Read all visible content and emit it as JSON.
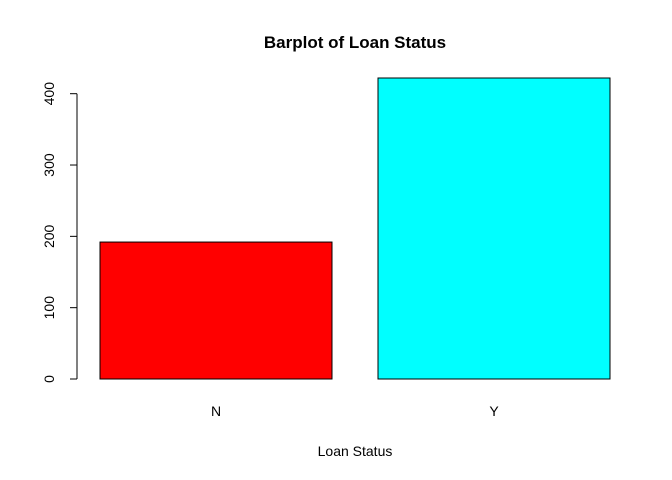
{
  "chart_data": {
    "type": "bar",
    "title": "Barplot of Loan Status",
    "xlabel": "Loan Status",
    "ylabel": "",
    "categories": [
      "N",
      "Y"
    ],
    "values": [
      192,
      422
    ],
    "colors": [
      "#ff0000",
      "#00ffff"
    ],
    "ylim": [
      0,
      422
    ],
    "yticks": [
      0,
      100,
      200,
      300,
      400
    ],
    "grid": false,
    "legend": "none"
  }
}
